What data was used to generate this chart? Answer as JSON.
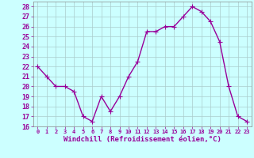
{
  "x": [
    0,
    1,
    2,
    3,
    4,
    5,
    6,
    7,
    8,
    9,
    10,
    11,
    12,
    13,
    14,
    15,
    16,
    17,
    18,
    19,
    20,
    21,
    22,
    23
  ],
  "y": [
    22,
    21,
    20,
    20,
    19.5,
    17,
    16.5,
    19,
    17.5,
    19,
    21,
    22.5,
    25.5,
    25.5,
    26,
    26,
    27,
    28,
    27.5,
    26.5,
    24.5,
    20,
    17,
    16.5
  ],
  "line_color": "#990099",
  "marker": "+",
  "marker_size": 4,
  "linewidth": 1.0,
  "bg_color": "#ccffff",
  "grid_color": "#aacccc",
  "xlabel": "Windchill (Refroidissement éolien,°C)",
  "xlabel_fontsize": 6.5,
  "tick_color": "#990099",
  "ytick_fontsize": 6,
  "xtick_fontsize": 5.0,
  "xlim": [
    -0.5,
    23.5
  ],
  "ylim": [
    16,
    28.5
  ],
  "yticks": [
    16,
    17,
    18,
    19,
    20,
    21,
    22,
    23,
    24,
    25,
    26,
    27,
    28
  ],
  "xticks": [
    0,
    1,
    2,
    3,
    4,
    5,
    6,
    7,
    8,
    9,
    10,
    11,
    12,
    13,
    14,
    15,
    16,
    17,
    18,
    19,
    20,
    21,
    22,
    23
  ]
}
